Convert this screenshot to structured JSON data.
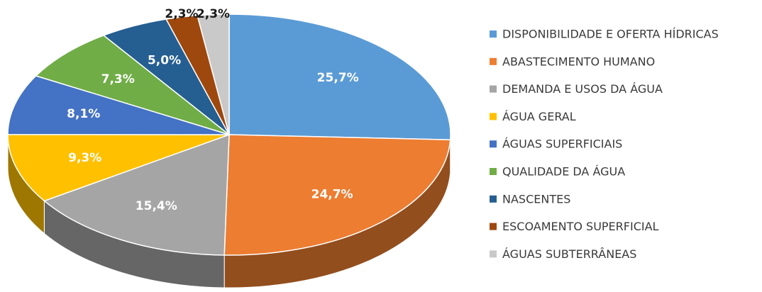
{
  "chart_data": {
    "type": "pie",
    "categories": [
      "DISPONIBILIDADE E OFERTA HÍDRICAS",
      "ABASTECIMENTO HUMANO",
      "DEMANDA E USOS DA ÁGUA",
      "ÁGUA GERAL",
      "ÁGUAS SUPERFICIAIS",
      "QUALIDADE DA ÁGUA",
      "NASCENTES",
      "ESCOAMENTO SUPERFICIAL",
      "ÁGUAS SUBTERRÂNEAS"
    ],
    "values": [
      25.7,
      24.7,
      15.4,
      9.3,
      8.1,
      7.3,
      5.0,
      2.3,
      2.3
    ],
    "value_labels": [
      "25,7%",
      "24,7%",
      "15,4%",
      "9,3%",
      "8,1%",
      "7,3%",
      "5,0%",
      "2,3%",
      "2,3%"
    ],
    "colors": [
      "#5b9bd5",
      "#ed7d31",
      "#a5a5a5",
      "#ffc000",
      "#4472c4",
      "#70ad47",
      "#255e91",
      "#9e480e",
      "#c9c9c9"
    ],
    "legend": "right"
  }
}
